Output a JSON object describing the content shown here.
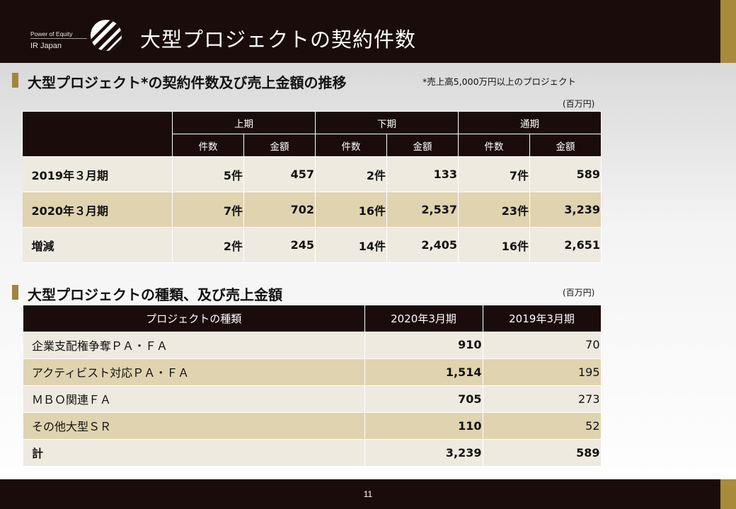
{
  "header": {
    "brand_top": "Power of Equity",
    "brand_bottom": "IR Japan",
    "title": "大型プロジェクトの契約件数"
  },
  "section1": {
    "title": "大型プロジェクト*の契約件数及び売上金額の推移",
    "note": "*売上高5,000万円以上のプロジェクト",
    "unit": "(百万円)",
    "group_headers": [
      "上期",
      "下期",
      "通期"
    ],
    "sub_headers": [
      "件数",
      "金額",
      "件数",
      "金額",
      "件数",
      "金額"
    ],
    "rows": [
      {
        "label": "2019年３月期",
        "cells": [
          "5件",
          "457",
          "2件",
          "133",
          "7件",
          "589"
        ]
      },
      {
        "label": "2020年３月期",
        "cells": [
          "7件",
          "702",
          "16件",
          "2,537",
          "23件",
          "3,239"
        ]
      },
      {
        "label": "増減",
        "cells": [
          "2件",
          "245",
          "14件",
          "2,405",
          "16件",
          "2,651"
        ]
      }
    ]
  },
  "section2": {
    "title": "大型プロジェクトの種類、及び売上金額",
    "unit": "(百万円)",
    "headers": [
      "プロジェクトの種類",
      "2020年3月期",
      "2019年3月期"
    ],
    "rows": [
      {
        "name": "企業支配権争奪ＰＡ・ＦＡ",
        "v2020": "910",
        "v2019": "70"
      },
      {
        "name": "アクティビスト対応ＰＡ・ＦＡ",
        "v2020": "1,514",
        "v2019": "195"
      },
      {
        "name": "ＭＢＯ関連ＦＡ",
        "v2020": "705",
        "v2019": "273"
      },
      {
        "name": "その他大型ＳＲ",
        "v2020": "110",
        "v2019": "52"
      },
      {
        "name": "計",
        "v2020": "3,239",
        "v2019": "589"
      }
    ]
  },
  "footer": {
    "page_number": "11"
  },
  "colors": {
    "dark": "#1a0c0a",
    "gold": "#a88b3a",
    "row_light": "#eeeae0",
    "row_tan": "#e0d3b0"
  },
  "icons": {
    "logo": "diagonal-stripes-circle-logo"
  }
}
